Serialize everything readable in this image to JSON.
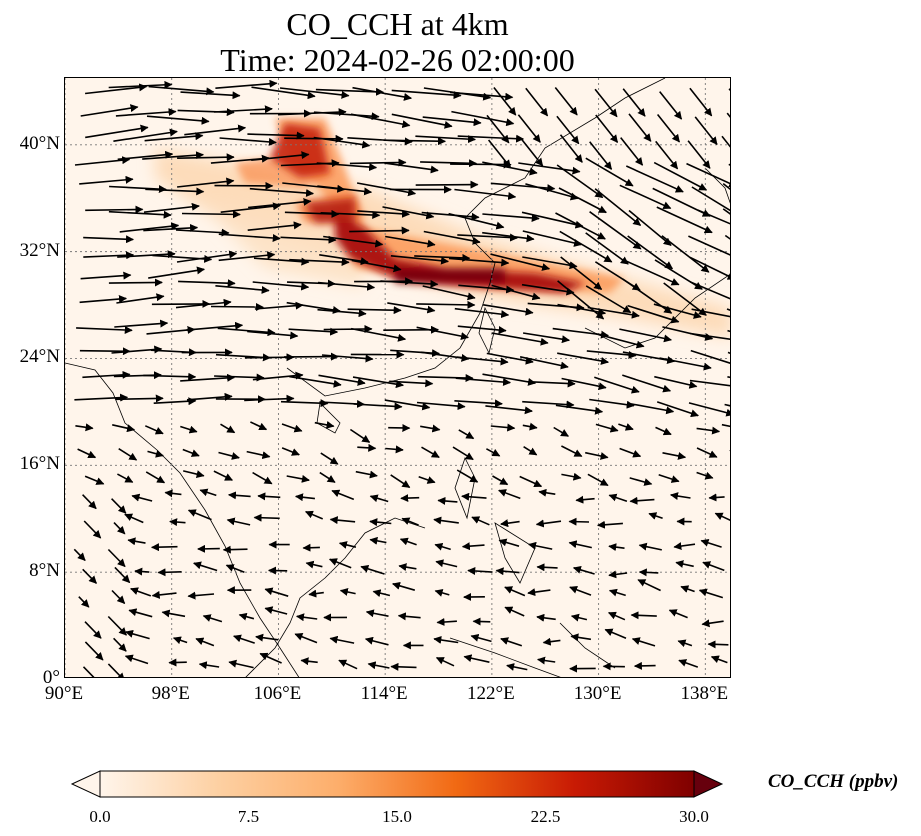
{
  "title": {
    "line1": "CO_CCH at 4km",
    "line2": "Time: 2024-02-26 02:00:00"
  },
  "map": {
    "variable": "CO_CCH",
    "level": "4km",
    "extent": {
      "lon": [
        90,
        140
      ],
      "lat": [
        0,
        45
      ]
    },
    "lat_ticks": [
      {
        "value": 0,
        "label": "0°"
      },
      {
        "value": 8,
        "label": "8°N"
      },
      {
        "value": 16,
        "label": "16°N"
      },
      {
        "value": 24,
        "label": "24°N"
      },
      {
        "value": 32,
        "label": "32°N"
      },
      {
        "value": 40,
        "label": "40°N"
      }
    ],
    "lon_ticks": [
      {
        "value": 90,
        "label": "90°E"
      },
      {
        "value": 98,
        "label": "98°E"
      },
      {
        "value": 106,
        "label": "106°E"
      },
      {
        "value": 114,
        "label": "114°E"
      },
      {
        "value": 122,
        "label": "122°E"
      },
      {
        "value": 130,
        "label": "130°E"
      },
      {
        "value": 138,
        "label": "138°E"
      }
    ],
    "gridlines": true,
    "wind_vectors": true,
    "colormap": [
      "#fff5eb",
      "#fdd0a2",
      "#fd8d3c",
      "#d94801",
      "#a50f15",
      "#67000d"
    ]
  },
  "colorbar": {
    "label": "CO_CCH (ppbv)",
    "ticks": [
      "0.0",
      "7.5",
      "15.0",
      "22.5",
      "30.0"
    ],
    "range": [
      0,
      30
    ],
    "extend": "both"
  }
}
